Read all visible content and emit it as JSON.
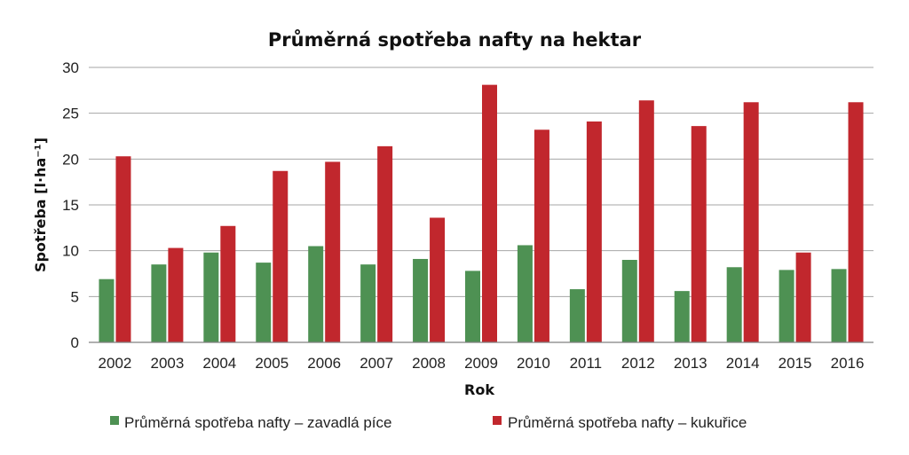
{
  "chart_data": {
    "type": "bar",
    "title": "Průměrná spotřeba nafty na hektar",
    "xlabel": "Rok",
    "ylabel": "Spotřeba [l·ha⁻¹]",
    "ylim": [
      0,
      30
    ],
    "yticks": [
      0,
      5,
      10,
      15,
      20,
      25,
      30
    ],
    "grid": true,
    "legend_position": "bottom",
    "categories": [
      "2002",
      "2003",
      "2004",
      "2005",
      "2006",
      "2007",
      "2008",
      "2009",
      "2010",
      "2011",
      "2012",
      "2013",
      "2014",
      "2015",
      "2016"
    ],
    "series": [
      {
        "name": "Průměrná spotřeba nafty – zavadlá píce",
        "color": "#4e9153",
        "values": [
          6.9,
          8.5,
          9.8,
          8.7,
          10.5,
          8.5,
          9.1,
          7.8,
          10.6,
          5.8,
          9.0,
          5.6,
          8.2,
          7.9,
          8.0
        ]
      },
      {
        "name": "Průměrná spotřeba nafty – kukuřice",
        "color": "#c1272d",
        "values": [
          20.3,
          10.3,
          12.7,
          18.7,
          19.7,
          21.4,
          13.6,
          28.1,
          23.2,
          24.1,
          26.4,
          23.6,
          26.2,
          9.8,
          26.2
        ]
      }
    ]
  }
}
